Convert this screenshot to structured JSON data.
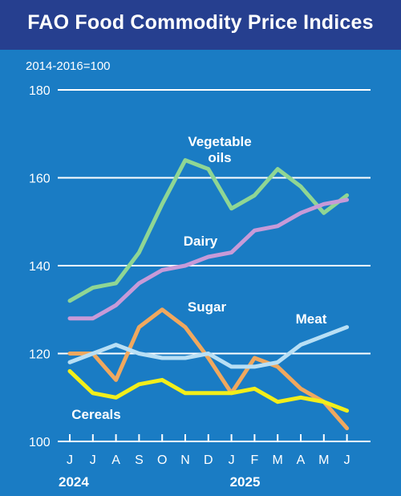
{
  "title": "FAO Food Commodity Price Indices",
  "base_note": "2014-2016=100",
  "colors": {
    "background": "#1a7cc4",
    "header": "#263f8f",
    "Vegetable oils": "#8fd694",
    "Dairy": "#c79ad8",
    "Sugar": "#f0a85e",
    "Meat": "#b8dff5",
    "Cereals": "#f2ee1a"
  },
  "chart_data": {
    "type": "line",
    "x": [
      "J",
      "J",
      "A",
      "S",
      "O",
      "N",
      "D",
      "J",
      "F",
      "M",
      "A",
      "M",
      "J"
    ],
    "year_labels": [
      "2024",
      "2025"
    ],
    "ylim": [
      100,
      180
    ],
    "yticks": [
      100,
      120,
      140,
      160,
      180
    ],
    "grid": true,
    "series": [
      {
        "name": "Vegetable oils",
        "values": [
          132,
          135,
          136,
          143,
          154,
          164,
          162,
          153,
          156,
          162,
          158,
          152,
          156
        ]
      },
      {
        "name": "Dairy",
        "values": [
          128,
          128,
          131,
          136,
          139,
          140,
          142,
          143,
          148,
          149,
          152,
          154,
          155
        ]
      },
      {
        "name": "Sugar",
        "values": [
          120,
          120,
          114,
          126,
          130,
          126,
          119,
          111,
          119,
          117,
          112,
          109,
          103
        ]
      },
      {
        "name": "Meat",
        "values": [
          118,
          120,
          122,
          120,
          119,
          119,
          120,
          117,
          117,
          118,
          122,
          124,
          126
        ]
      },
      {
        "name": "Cereals",
        "values": [
          116,
          111,
          110,
          113,
          114,
          111,
          111,
          111,
          112,
          109,
          110,
          109,
          107
        ]
      }
    ],
    "series_labels": [
      {
        "series": "Vegetable oils",
        "lines": [
          "Vegetable",
          "oils"
        ]
      },
      {
        "series": "Dairy",
        "lines": [
          "Dairy"
        ]
      },
      {
        "series": "Sugar",
        "lines": [
          "Sugar"
        ]
      },
      {
        "series": "Meat",
        "lines": [
          "Meat"
        ]
      },
      {
        "series": "Cereals",
        "lines": [
          "Cereals"
        ]
      }
    ]
  }
}
